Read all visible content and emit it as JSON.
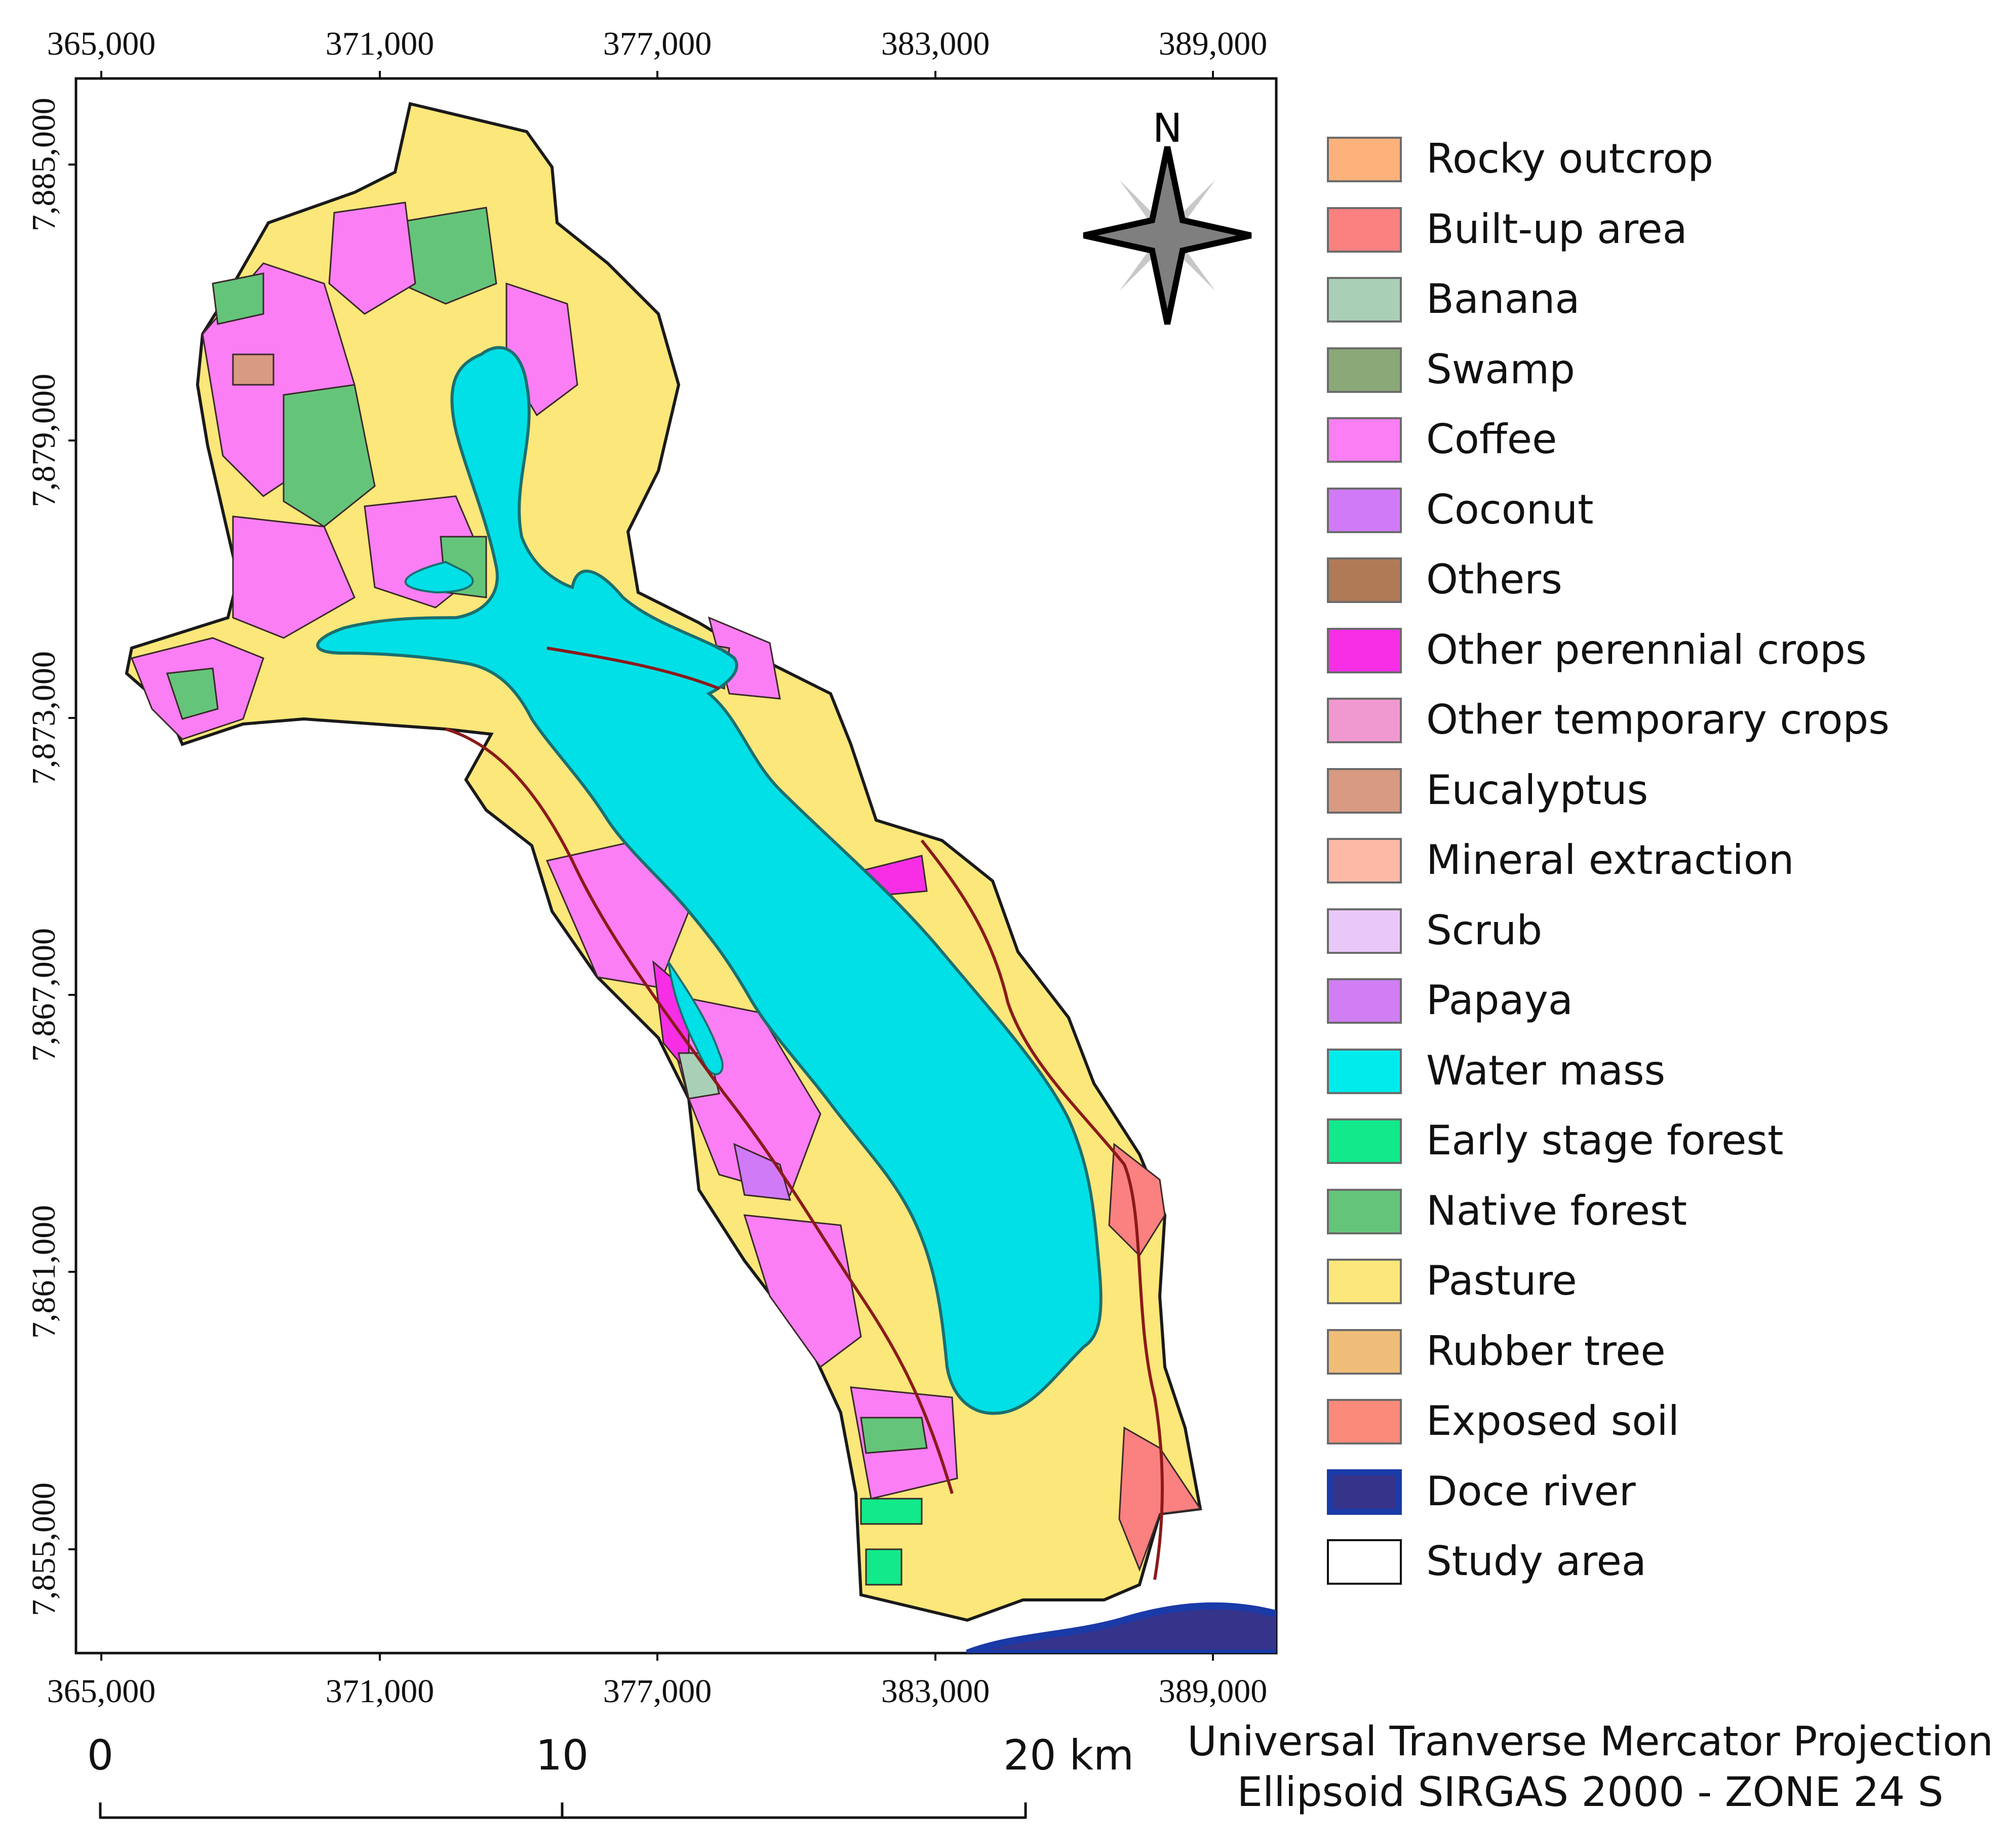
{
  "map": {
    "x_ticks_top": [
      "365,000",
      "371,000",
      "377,000",
      "383,000",
      "389,000"
    ],
    "x_ticks_bottom": [
      "365,000",
      "371,000",
      "377,000",
      "383,000",
      "389,000"
    ],
    "y_ticks": [
      "7,885,000",
      "7,879,000",
      "7,873,000",
      "7,867,000",
      "7,861,000",
      "7,855,000"
    ],
    "north_label": "N"
  },
  "legend": {
    "items": [
      {
        "label": "Rocky outcrop",
        "color": "#fdb27b"
      },
      {
        "label": "Built-up area",
        "color": "#fb8080"
      },
      {
        "label": "Banana",
        "color": "#a9d0b6"
      },
      {
        "label": "Swamp",
        "color": "#8aa878"
      },
      {
        "label": "Coffee",
        "color": "#fb7ef4"
      },
      {
        "label": "Coconut",
        "color": "#d07af8"
      },
      {
        "label": "Others",
        "color": "#b17a57"
      },
      {
        "label": "Other perennial crops",
        "color": "#f72ee5"
      },
      {
        "label": "Other temporary crops",
        "color": "#f099d0"
      },
      {
        "label": "Eucalyptus",
        "color": "#d89a80"
      },
      {
        "label": "Mineral extraction",
        "color": "#fdb9a6"
      },
      {
        "label": "Scrub",
        "color": "#e9c8f9"
      },
      {
        "label": "Papaya",
        "color": "#d17ef4"
      },
      {
        "label": "Water mass",
        "color": "#00ecec"
      },
      {
        "label": "Early stage forest",
        "color": "#11e98a"
      },
      {
        "label": "Native forest",
        "color": "#64c57a"
      },
      {
        "label": "Pasture",
        "color": "#fbe77a"
      },
      {
        "label": "Rubber tree",
        "color": "#efbd78"
      },
      {
        "label": "Exposed soil",
        "color": "#fb8a7a"
      },
      {
        "label": "Doce river",
        "color": "#35338a"
      },
      {
        "label": "Study area",
        "color": "#ffffff"
      }
    ]
  },
  "scale": {
    "labels": [
      "0",
      "10",
      "20 km"
    ]
  },
  "projection": {
    "line1": "Universal Tranverse Mercator Projection",
    "line2": "Ellipsoid SIRGAS 2000 - ZONE 24 S"
  }
}
